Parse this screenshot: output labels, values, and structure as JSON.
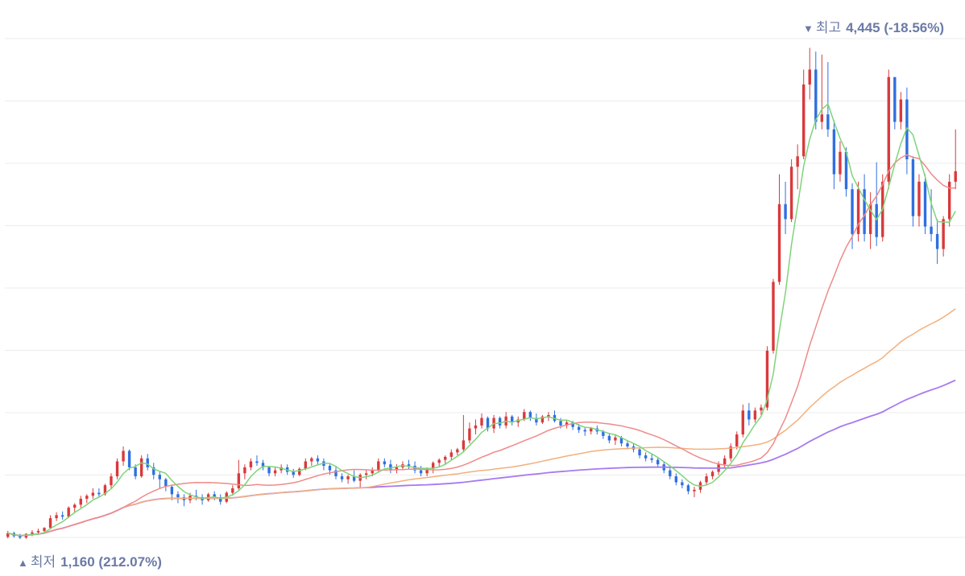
{
  "annotations": {
    "high": {
      "arrow": "▼",
      "label": "최고",
      "value": "4,445 (-18.56%)"
    },
    "low": {
      "arrow": "▲",
      "label": "최저",
      "value": "1,160 (212.07%)"
    }
  },
  "chart_data": {
    "type": "candlestick",
    "ylim": [
      1150,
      4550
    ],
    "grid": true,
    "colors": {
      "up": "#d9393b",
      "down": "#2f6fe0",
      "ma5": "#7fd47a",
      "ma20": "#ef8a8a",
      "ma60": "#f2b07d",
      "ma120": "#a77af0",
      "grid": "#ececec"
    },
    "candles": [
      [
        1175,
        1215,
        1165,
        1200
      ],
      [
        1200,
        1210,
        1170,
        1180
      ],
      [
        1180,
        1195,
        1160,
        1170
      ],
      [
        1170,
        1200,
        1162,
        1195
      ],
      [
        1195,
        1220,
        1180,
        1205
      ],
      [
        1205,
        1230,
        1190,
        1215
      ],
      [
        1215,
        1240,
        1200,
        1235
      ],
      [
        1235,
        1320,
        1225,
        1300
      ],
      [
        1300,
        1340,
        1280,
        1320
      ],
      [
        1320,
        1345,
        1290,
        1310
      ],
      [
        1310,
        1380,
        1300,
        1370
      ],
      [
        1370,
        1400,
        1340,
        1390
      ],
      [
        1390,
        1450,
        1370,
        1430
      ],
      [
        1430,
        1460,
        1400,
        1450
      ],
      [
        1450,
        1500,
        1430,
        1470
      ],
      [
        1470,
        1500,
        1440,
        1460
      ],
      [
        1460,
        1530,
        1450,
        1520
      ],
      [
        1520,
        1600,
        1500,
        1580
      ],
      [
        1580,
        1700,
        1560,
        1680
      ],
      [
        1680,
        1780,
        1650,
        1750
      ],
      [
        1750,
        1760,
        1620,
        1640
      ],
      [
        1640,
        1660,
        1560,
        1580
      ],
      [
        1580,
        1720,
        1570,
        1700
      ],
      [
        1700,
        1730,
        1620,
        1640
      ],
      [
        1640,
        1670,
        1560,
        1590
      ],
      [
        1590,
        1610,
        1500,
        1560
      ],
      [
        1560,
        1570,
        1480,
        1510
      ],
      [
        1510,
        1520,
        1420,
        1460
      ],
      [
        1460,
        1480,
        1400,
        1440
      ],
      [
        1440,
        1460,
        1380,
        1420
      ],
      [
        1420,
        1470,
        1400,
        1450
      ],
      [
        1450,
        1490,
        1420,
        1440
      ],
      [
        1440,
        1460,
        1390,
        1420
      ],
      [
        1420,
        1470,
        1410,
        1460
      ],
      [
        1460,
        1480,
        1420,
        1440
      ],
      [
        1440,
        1460,
        1390,
        1410
      ],
      [
        1410,
        1480,
        1400,
        1470
      ],
      [
        1470,
        1520,
        1450,
        1500
      ],
      [
        1500,
        1690,
        1490,
        1600
      ],
      [
        1600,
        1660,
        1560,
        1640
      ],
      [
        1640,
        1700,
        1620,
        1680
      ],
      [
        1680,
        1720,
        1650,
        1670
      ],
      [
        1670,
        1690,
        1620,
        1640
      ],
      [
        1640,
        1650,
        1580,
        1600
      ],
      [
        1600,
        1640,
        1580,
        1620
      ],
      [
        1620,
        1660,
        1600,
        1640
      ],
      [
        1640,
        1660,
        1590,
        1610
      ],
      [
        1610,
        1630,
        1570,
        1590
      ],
      [
        1590,
        1640,
        1580,
        1630
      ],
      [
        1630,
        1700,
        1620,
        1680
      ],
      [
        1680,
        1710,
        1650,
        1700
      ],
      [
        1700,
        1720,
        1660,
        1680
      ],
      [
        1680,
        1700,
        1620,
        1650
      ],
      [
        1650,
        1660,
        1590,
        1620
      ],
      [
        1620,
        1650,
        1560,
        1580
      ],
      [
        1580,
        1600,
        1540,
        1560
      ],
      [
        1560,
        1590,
        1530,
        1580
      ],
      [
        1580,
        1620,
        1540,
        1550
      ],
      [
        1550,
        1600,
        1500,
        1590
      ],
      [
        1590,
        1620,
        1560,
        1600
      ],
      [
        1600,
        1640,
        1580,
        1620
      ],
      [
        1620,
        1700,
        1610,
        1680
      ],
      [
        1680,
        1700,
        1640,
        1660
      ],
      [
        1660,
        1690,
        1600,
        1620
      ],
      [
        1620,
        1660,
        1600,
        1640
      ],
      [
        1640,
        1680,
        1620,
        1660
      ],
      [
        1660,
        1690,
        1630,
        1650
      ],
      [
        1650,
        1680,
        1600,
        1620
      ],
      [
        1620,
        1650,
        1580,
        1600
      ],
      [
        1600,
        1640,
        1580,
        1630
      ],
      [
        1630,
        1680,
        1600,
        1670
      ],
      [
        1670,
        1700,
        1640,
        1690
      ],
      [
        1690,
        1720,
        1660,
        1710
      ],
      [
        1710,
        1760,
        1690,
        1740
      ],
      [
        1740,
        1770,
        1720,
        1760
      ],
      [
        1760,
        1990,
        1740,
        1820
      ],
      [
        1820,
        1940,
        1800,
        1900
      ],
      [
        1900,
        1960,
        1860,
        1920
      ],
      [
        1920,
        2000,
        1900,
        1970
      ],
      [
        1970,
        1980,
        1880,
        1900
      ],
      [
        1900,
        1990,
        1870,
        1970
      ],
      [
        1970,
        1980,
        1900,
        1920
      ],
      [
        1920,
        2010,
        1900,
        1980
      ],
      [
        1980,
        1990,
        1920,
        1940
      ],
      [
        1940,
        1980,
        1910,
        1960
      ],
      [
        1960,
        2030,
        1950,
        2010
      ],
      [
        2010,
        2020,
        1950,
        1970
      ],
      [
        1970,
        2000,
        1920,
        1940
      ],
      [
        1940,
        1990,
        1930,
        1980
      ],
      [
        1980,
        2010,
        1950,
        1990
      ],
      [
        1990,
        2020,
        1940,
        1950
      ],
      [
        1950,
        1970,
        1900,
        1920
      ],
      [
        1920,
        1960,
        1900,
        1940
      ],
      [
        1940,
        1950,
        1890,
        1910
      ],
      [
        1910,
        1930,
        1870,
        1890
      ],
      [
        1890,
        1910,
        1850,
        1880
      ],
      [
        1880,
        1910,
        1860,
        1900
      ],
      [
        1900,
        1920,
        1860,
        1880
      ],
      [
        1880,
        1890,
        1830,
        1850
      ],
      [
        1850,
        1870,
        1800,
        1820
      ],
      [
        1820,
        1860,
        1790,
        1840
      ],
      [
        1840,
        1850,
        1780,
        1800
      ],
      [
        1800,
        1820,
        1760,
        1780
      ],
      [
        1780,
        1800,
        1740,
        1760
      ],
      [
        1760,
        1770,
        1700,
        1720
      ],
      [
        1720,
        1740,
        1680,
        1700
      ],
      [
        1700,
        1730,
        1670,
        1690
      ],
      [
        1690,
        1710,
        1640,
        1660
      ],
      [
        1660,
        1680,
        1600,
        1620
      ],
      [
        1620,
        1640,
        1560,
        1580
      ],
      [
        1580,
        1600,
        1520,
        1540
      ],
      [
        1540,
        1560,
        1500,
        1520
      ],
      [
        1520,
        1530,
        1460,
        1480
      ],
      [
        1480,
        1510,
        1440,
        1490
      ],
      [
        1490,
        1550,
        1470,
        1540
      ],
      [
        1540,
        1600,
        1520,
        1580
      ],
      [
        1580,
        1620,
        1560,
        1610
      ],
      [
        1610,
        1680,
        1590,
        1660
      ],
      [
        1660,
        1720,
        1640,
        1700
      ],
      [
        1700,
        1800,
        1680,
        1780
      ],
      [
        1780,
        1880,
        1760,
        1860
      ],
      [
        1860,
        2060,
        1840,
        2020
      ],
      [
        2020,
        2070,
        1920,
        1960
      ],
      [
        1960,
        2040,
        1940,
        2020
      ],
      [
        2020,
        2060,
        1990,
        2040
      ],
      [
        2040,
        2450,
        2020,
        2420
      ],
      [
        2420,
        2900,
        2400,
        2880
      ],
      [
        2880,
        3600,
        2860,
        3400
      ],
      [
        3400,
        3550,
        3200,
        3300
      ],
      [
        3300,
        3700,
        3280,
        3650
      ],
      [
        3650,
        3800,
        3500,
        3720
      ],
      [
        3720,
        4300,
        3700,
        4200
      ],
      [
        4200,
        4445,
        4100,
        4300
      ],
      [
        4300,
        4420,
        3900,
        3950
      ],
      [
        3950,
        4400,
        3900,
        4000
      ],
      [
        4000,
        4350,
        3850,
        3900
      ],
      [
        3900,
        3960,
        3500,
        3600
      ],
      [
        3600,
        3820,
        3550,
        3750
      ],
      [
        3750,
        3780,
        3450,
        3500
      ],
      [
        3500,
        3540,
        3100,
        3200
      ],
      [
        3200,
        3550,
        3150,
        3500
      ],
      [
        3500,
        3600,
        3150,
        3200
      ],
      [
        3200,
        3480,
        3100,
        3400
      ],
      [
        3400,
        3680,
        3120,
        3180
      ],
      [
        3180,
        3600,
        3150,
        3550
      ],
      [
        3550,
        4300,
        3500,
        4250
      ],
      [
        4250,
        4240,
        3900,
        3950
      ],
      [
        3950,
        4150,
        3900,
        4100
      ],
      [
        4100,
        4180,
        3600,
        3700
      ],
      [
        3700,
        3720,
        3250,
        3320
      ],
      [
        3320,
        3600,
        3250,
        3550
      ],
      [
        3550,
        3600,
        3200,
        3250
      ],
      [
        3250,
        3500,
        3150,
        3200
      ],
      [
        3200,
        3300,
        3000,
        3100
      ],
      [
        3100,
        3320,
        3050,
        3300
      ],
      [
        3300,
        3600,
        3250,
        3550
      ],
      [
        3550,
        3900,
        3500,
        3620
      ]
    ]
  }
}
